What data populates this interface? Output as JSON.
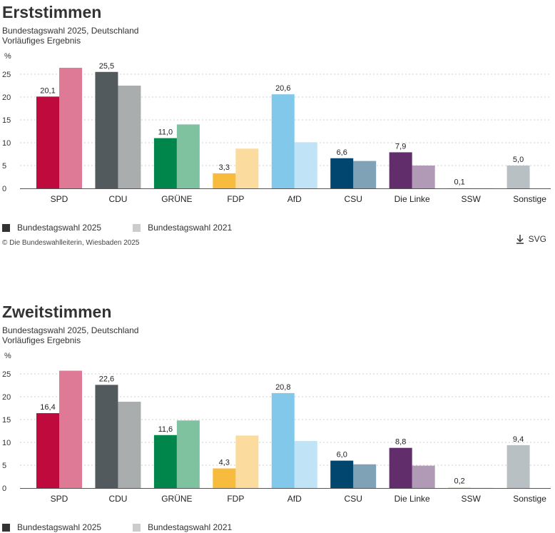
{
  "legend": {
    "current_label": "Bundestagswahl 2025",
    "previous_label": "Bundestagswahl 2021",
    "current_color": "#333333",
    "previous_color": "#cccccc"
  },
  "copyright": "© Die Bundeswahlleiterin, Wiesbaden 2025",
  "download_label": "SVG",
  "chart_data": [
    {
      "type": "bar",
      "title": "Erststimmen",
      "subtitle": [
        "Bundestagswahl 2025, Deutschland",
        "Vorläufiges Ergebnis"
      ],
      "ylabel": "%",
      "ylim": [
        0,
        25
      ],
      "yticks": [
        0,
        5,
        10,
        15,
        20,
        25
      ],
      "grid": true,
      "categories": [
        "SPD",
        "CDU",
        "GRÜNE",
        "FDP",
        "AfD",
        "CSU",
        "Die Linke",
        "SSW",
        "Sonstige"
      ],
      "series": [
        {
          "name": "Bundestagswahl 2025",
          "values": [
            20.1,
            25.5,
            11.0,
            3.3,
            20.6,
            6.6,
            7.9,
            0.1,
            5.0
          ],
          "labels": [
            "20,1",
            "25,5",
            "11,0",
            "3,3",
            "20,6",
            "6,6",
            "7,9",
            "0,1",
            "5,0"
          ]
        },
        {
          "name": "Bundestagswahl 2021",
          "values": [
            26.4,
            22.5,
            14.0,
            8.7,
            10.1,
            6.0,
            5.0,
            0.1,
            null
          ]
        }
      ],
      "colors_2025": [
        "#be0a3c",
        "#525a5e",
        "#00864a",
        "#f7bb3d",
        "#82c8eb",
        "#00466e",
        "#622d6b",
        "#ede7b5",
        "#b9c0c3"
      ],
      "colors_2021": [
        "#df7a96",
        "#a9adae",
        "#7fc29f",
        "#fbdc9e",
        "#c0e3f5",
        "#7fa2b6",
        "#b09ab5",
        "#f0edd6",
        "#dcdfe1"
      ]
    },
    {
      "type": "bar",
      "title": "Zweitstimmen",
      "subtitle": [
        "Bundestagswahl 2025, Deutschland",
        "Vorläufiges Ergebnis"
      ],
      "ylabel": "%",
      "ylim": [
        0,
        25
      ],
      "yticks": [
        0,
        5,
        10,
        15,
        20,
        25
      ],
      "grid": true,
      "categories": [
        "SPD",
        "CDU",
        "GRÜNE",
        "FDP",
        "AfD",
        "CSU",
        "Die Linke",
        "SSW",
        "Sonstige"
      ],
      "series": [
        {
          "name": "Bundestagswahl 2025",
          "values": [
            16.4,
            22.6,
            11.6,
            4.3,
            20.8,
            6.0,
            8.8,
            0.2,
            9.4
          ],
          "labels": [
            "16,4",
            "22,6",
            "11,6",
            "4,3",
            "20,8",
            "6,0",
            "8,8",
            "0,2",
            "9,4"
          ]
        },
        {
          "name": "Bundestagswahl 2021",
          "values": [
            25.7,
            18.9,
            14.8,
            11.5,
            10.3,
            5.2,
            4.9,
            0.1,
            null
          ]
        }
      ],
      "colors_2025": [
        "#be0a3c",
        "#525a5e",
        "#00864a",
        "#f7bb3d",
        "#82c8eb",
        "#00466e",
        "#622d6b",
        "#ede7b5",
        "#b9c0c3"
      ],
      "colors_2021": [
        "#df7a96",
        "#a9adae",
        "#7fc29f",
        "#fbdc9e",
        "#c0e3f5",
        "#7fa2b6",
        "#b09ab5",
        "#f0edd6",
        "#dcdfe1"
      ]
    }
  ]
}
